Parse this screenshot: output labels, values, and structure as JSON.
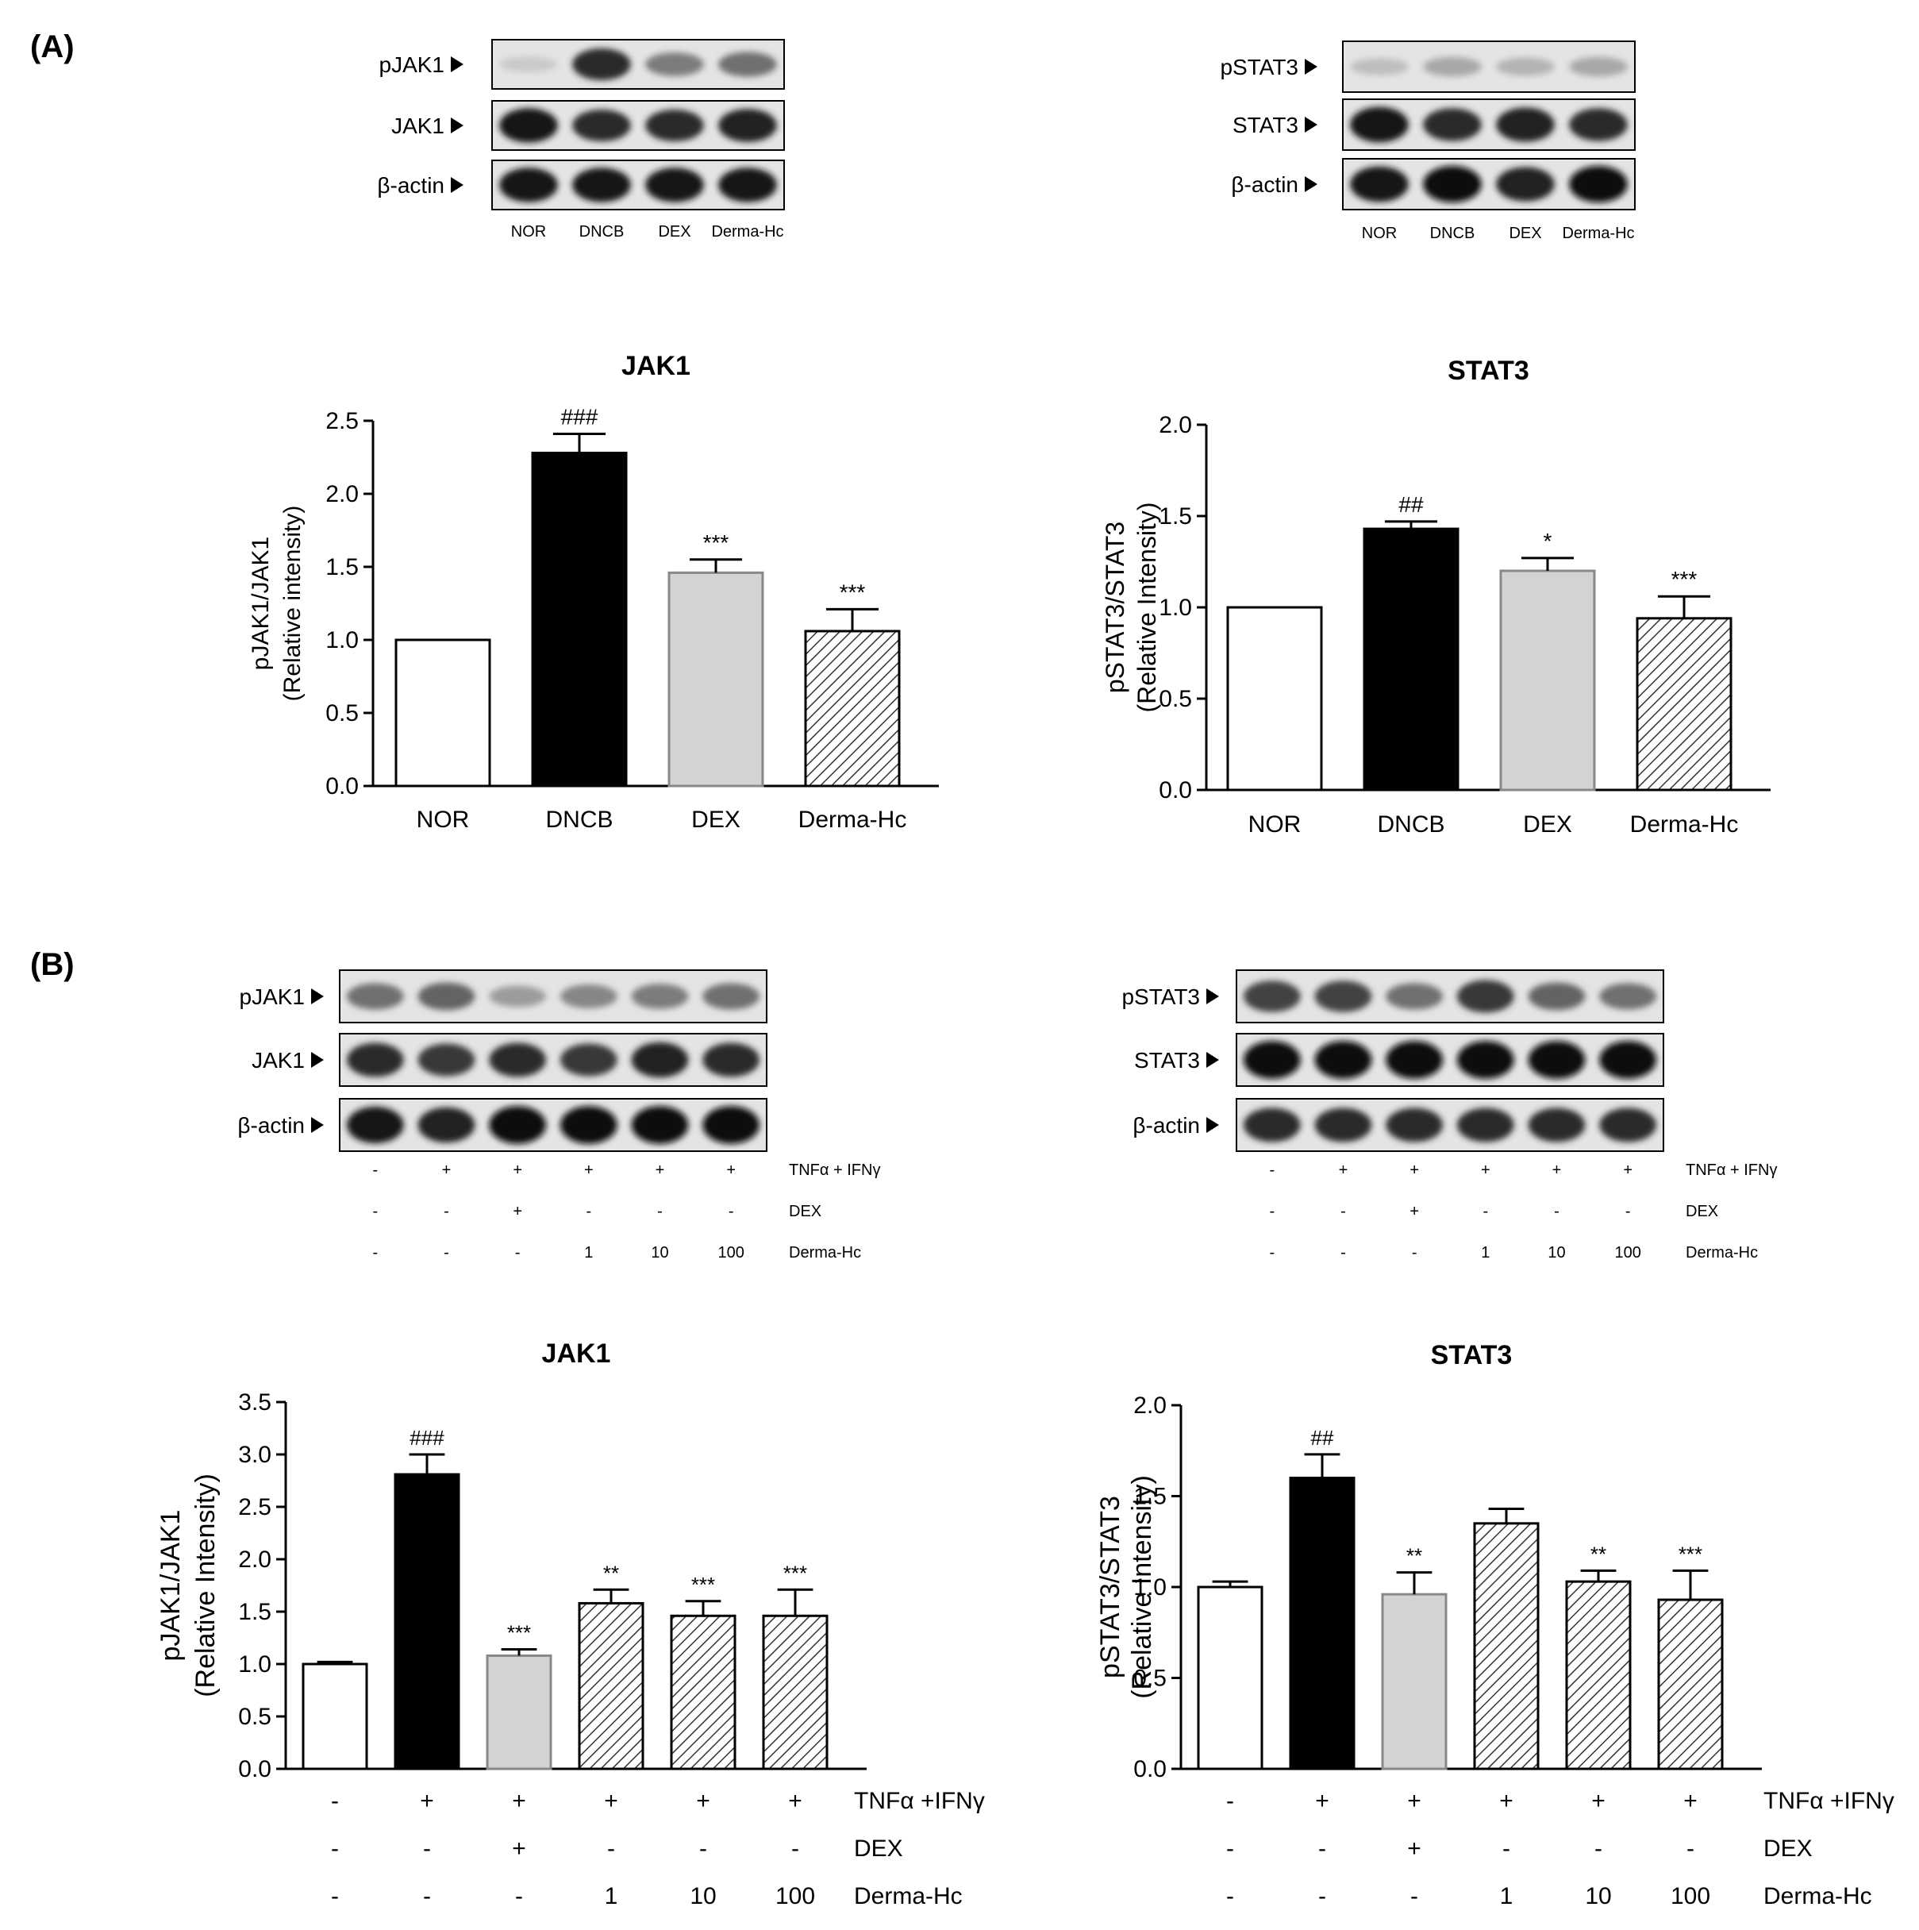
{
  "panels": [
    {
      "label": "(A)"
    },
    {
      "label": "(B)"
    }
  ],
  "blots": [
    {
      "rows": [
        "pJAK1",
        "JAK1",
        "β-actin"
      ],
      "lane_labels": [
        "NOR",
        "DNCB",
        "DEX",
        "Derma-Hc"
      ],
      "row_intensity": [
        [
          0.15,
          0.85,
          0.5,
          0.55
        ],
        [
          0.95,
          0.85,
          0.85,
          0.9
        ],
        [
          0.95,
          0.95,
          0.95,
          0.95
        ]
      ],
      "treatment_rows": []
    },
    {
      "rows": [
        "pSTAT3",
        "STAT3",
        "β-actin"
      ],
      "lane_labels": [
        "NOR",
        "DNCB",
        "DEX",
        "Derma-Hc"
      ],
      "row_intensity": [
        [
          0.2,
          0.3,
          0.25,
          0.3
        ],
        [
          0.95,
          0.85,
          0.9,
          0.85
        ],
        [
          0.95,
          1.0,
          0.9,
          1.0
        ]
      ],
      "treatment_rows": []
    },
    {
      "rows": [
        "pJAK1",
        "JAK1",
        "β-actin"
      ],
      "lane_labels": [],
      "row_intensity": [
        [
          0.55,
          0.6,
          0.35,
          0.45,
          0.5,
          0.55
        ],
        [
          0.85,
          0.8,
          0.85,
          0.8,
          0.9,
          0.85
        ],
        [
          0.95,
          0.9,
          1.0,
          1.0,
          1.0,
          1.0
        ]
      ],
      "treatment_rows": [
        {
          "values": [
            "-",
            "+",
            "+",
            "+",
            "+",
            "+"
          ],
          "label": "TNFα + IFNγ"
        },
        {
          "values": [
            "-",
            "-",
            "+",
            "-",
            "-",
            "-"
          ],
          "label": "DEX"
        },
        {
          "values": [
            "-",
            "-",
            "-",
            "1",
            "10",
            "100"
          ],
          "label": "Derma-Hc"
        }
      ]
    },
    {
      "rows": [
        "pSTAT3",
        "STAT3",
        "β-actin"
      ],
      "lane_labels": [],
      "row_intensity": [
        [
          0.75,
          0.75,
          0.55,
          0.8,
          0.6,
          0.55
        ],
        [
          1.0,
          1.0,
          1.0,
          1.0,
          1.0,
          1.0
        ],
        [
          0.85,
          0.85,
          0.85,
          0.85,
          0.85,
          0.85
        ]
      ],
      "treatment_rows": [
        {
          "values": [
            "-",
            "+",
            "+",
            "+",
            "+",
            "+"
          ],
          "label": "TNFα + IFNγ"
        },
        {
          "values": [
            "-",
            "-",
            "+",
            "-",
            "-",
            "-"
          ],
          "label": "DEX"
        },
        {
          "values": [
            "-",
            "-",
            "-",
            "1",
            "10",
            "100"
          ],
          "label": "Derma-Hc"
        }
      ]
    }
  ],
  "chart_data": [
    {
      "type": "bar",
      "title": "JAK1",
      "ylabel_lines": [
        "pJAK1/JAK1",
        "(Relative intensity)"
      ],
      "ylim": [
        0,
        2.5
      ],
      "yticks": [
        "0.0",
        "0.5",
        "1.0",
        "1.5",
        "2.0",
        "2.5"
      ],
      "categories": [
        "NOR",
        "DNCB",
        "DEX",
        "Derma-Hc"
      ],
      "values": [
        1.0,
        2.28,
        1.46,
        1.06
      ],
      "errors": [
        0,
        0.13,
        0.09,
        0.15
      ],
      "annotations": [
        "",
        "###",
        "***",
        "***"
      ],
      "fills": [
        "white",
        "black",
        "gray",
        "hatch"
      ],
      "treatment_rows": []
    },
    {
      "type": "bar",
      "title": "STAT3",
      "ylabel_lines": [
        "pSTAT3/STAT3",
        "(Relative Intensity)"
      ],
      "ylim": [
        0,
        2.0
      ],
      "yticks": [
        "0.0",
        "0.5",
        "1.0",
        "1.5",
        "2.0"
      ],
      "categories": [
        "NOR",
        "DNCB",
        "DEX",
        "Derma-Hc"
      ],
      "values": [
        1.0,
        1.43,
        1.2,
        0.94
      ],
      "errors": [
        0,
        0.04,
        0.07,
        0.12
      ],
      "annotations": [
        "",
        "##",
        "*",
        "***"
      ],
      "fills": [
        "white",
        "black",
        "gray",
        "hatch"
      ],
      "treatment_rows": []
    },
    {
      "type": "bar",
      "title": "JAK1",
      "ylabel_lines": [
        "pJAK1/JAK1",
        "(Relative Intensity)"
      ],
      "ylim": [
        0,
        3.5
      ],
      "yticks": [
        "0.0",
        "0.5",
        "1.0",
        "1.5",
        "2.0",
        "2.5",
        "3.0",
        "3.5"
      ],
      "categories": [
        "",
        "",
        "",
        "",
        "",
        ""
      ],
      "values": [
        1.0,
        2.81,
        1.08,
        1.58,
        1.46,
        1.46
      ],
      "errors": [
        0.02,
        0.19,
        0.06,
        0.13,
        0.14,
        0.25
      ],
      "annotations": [
        "",
        "###",
        "***",
        "**",
        "***",
        "***"
      ],
      "fills": [
        "white",
        "black",
        "gray",
        "hatch",
        "hatch",
        "hatch"
      ],
      "treatment_rows": [
        {
          "values": [
            "-",
            "+",
            "+",
            "+",
            "+",
            "+"
          ],
          "label": "TNFα +IFNγ"
        },
        {
          "values": [
            "-",
            "-",
            "+",
            "-",
            "-",
            "-"
          ],
          "label": "DEX"
        },
        {
          "values": [
            "-",
            "-",
            "-",
            "1",
            "10",
            "100"
          ],
          "label": "Derma-Hc"
        }
      ]
    },
    {
      "type": "bar",
      "title": "STAT3",
      "ylabel_lines": [
        "pSTAT3/STAT3",
        "(Relative Intensity)"
      ],
      "ylim": [
        0,
        2.0
      ],
      "yticks": [
        "0.0",
        "0.5",
        "1.0",
        "1.5",
        "2.0"
      ],
      "categories": [
        "",
        "",
        "",
        "",
        "",
        ""
      ],
      "values": [
        1.0,
        1.6,
        0.96,
        1.35,
        1.03,
        0.93
      ],
      "errors": [
        0.03,
        0.13,
        0.12,
        0.08,
        0.06,
        0.16
      ],
      "annotations": [
        "",
        "##",
        "**",
        "",
        "**",
        "***"
      ],
      "fills": [
        "white",
        "black",
        "gray",
        "hatch",
        "hatch",
        "hatch"
      ],
      "treatment_rows": [
        {
          "values": [
            "-",
            "+",
            "+",
            "+",
            "+",
            "+"
          ],
          "label": "TNFα +IFNγ"
        },
        {
          "values": [
            "-",
            "-",
            "+",
            "-",
            "-",
            "-"
          ],
          "label": "DEX"
        },
        {
          "values": [
            "-",
            "-",
            "-",
            "1",
            "10",
            "100"
          ],
          "label": "Derma-Hc"
        }
      ]
    }
  ]
}
